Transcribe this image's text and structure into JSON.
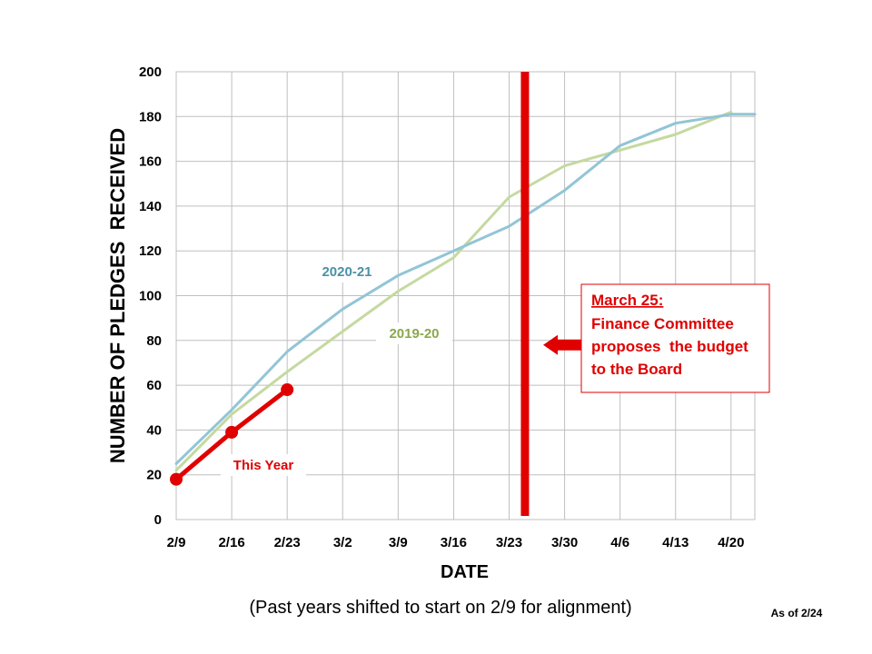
{
  "chart_data": {
    "type": "line",
    "title": "",
    "xlabel": "DATE",
    "ylabel": "NUMBER OF PLEDGES  RECEIVED",
    "ylim": [
      0,
      200
    ],
    "yticks": [
      0,
      20,
      40,
      60,
      80,
      100,
      120,
      140,
      160,
      180,
      200
    ],
    "xlim": [
      "2/9",
      "4/23"
    ],
    "xticks": [
      "2/9",
      "2/16",
      "2/23",
      "3/2",
      "3/9",
      "3/16",
      "3/23",
      "3/30",
      "4/6",
      "4/13",
      "4/20"
    ],
    "grid": true,
    "series": [
      {
        "name": "2020-21",
        "color": "#92c5d6",
        "markers": false,
        "points": [
          {
            "x": "2/9",
            "y": 25
          },
          {
            "x": "2/16",
            "y": 49
          },
          {
            "x": "2/23",
            "y": 75
          },
          {
            "x": "3/2",
            "y": 94
          },
          {
            "x": "3/9",
            "y": 109
          },
          {
            "x": "3/16",
            "y": 120
          },
          {
            "x": "3/23",
            "y": 131
          },
          {
            "x": "3/30",
            "y": 147
          },
          {
            "x": "4/6",
            "y": 167
          },
          {
            "x": "4/13",
            "y": 177
          },
          {
            "x": "4/20",
            "y": 181
          },
          {
            "x": "4/23",
            "y": 181
          }
        ]
      },
      {
        "name": "2019-20",
        "color": "#c5d9a0",
        "markers": false,
        "points": [
          {
            "x": "2/9",
            "y": 22
          },
          {
            "x": "2/16",
            "y": 47
          },
          {
            "x": "2/23",
            "y": 66
          },
          {
            "x": "3/2",
            "y": 84
          },
          {
            "x": "3/9",
            "y": 102
          },
          {
            "x": "3/16",
            "y": 117
          },
          {
            "x": "3/23",
            "y": 144
          },
          {
            "x": "3/30",
            "y": 158
          },
          {
            "x": "4/6",
            "y": 165
          },
          {
            "x": "4/13",
            "y": 172
          },
          {
            "x": "4/20",
            "y": 182
          }
        ]
      },
      {
        "name": "This Year",
        "color": "#e00000",
        "markers": true,
        "points": [
          {
            "x": "2/9",
            "y": 18
          },
          {
            "x": "2/16",
            "y": 39
          },
          {
            "x": "2/23",
            "y": 58
          }
        ]
      }
    ],
    "series_label_colors": {
      "2020-21": "#4a90a8",
      "2019-20": "#8aa84a",
      "This Year": "#e00000"
    },
    "marker_line": {
      "x": "3/25",
      "color": "#e00000"
    },
    "callout": {
      "heading": "March 25:",
      "lines": [
        "Finance Committee",
        "proposes  the budget",
        "to the Board"
      ],
      "color": "#e00000"
    },
    "caption": "(Past years shifted to start on 2/9 for alignment)",
    "as_of": "As of 2/24"
  }
}
